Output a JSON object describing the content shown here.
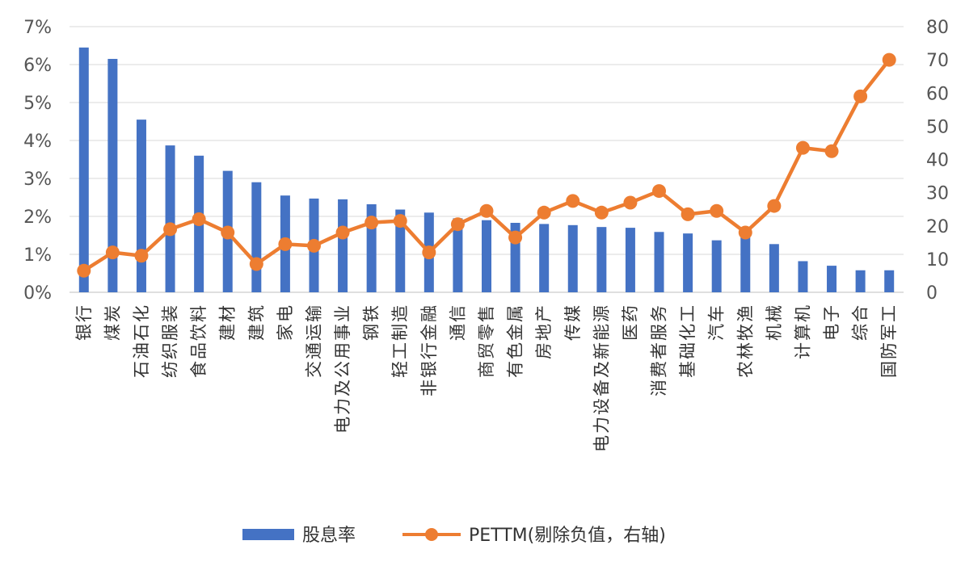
{
  "chart_data": {
    "type": "bar",
    "categories": [
      "银行",
      "煤炭",
      "石油石化",
      "纺织服装",
      "食品饮料",
      "建材",
      "建筑",
      "家电",
      "交通运输",
      "电力及公用事业",
      "钢铁",
      "轻工制造",
      "非银行金融",
      "通信",
      "商贸零售",
      "有色金属",
      "房地产",
      "传媒",
      "电力设备及新能源",
      "医药",
      "消费者服务",
      "基础化工",
      "汽车",
      "农林牧渔",
      "机械",
      "计算机",
      "电子",
      "综合",
      "国防军工"
    ],
    "series": [
      {
        "name": "股息率",
        "type": "bar",
        "axis": "left",
        "color": "#4472C4",
        "values": [
          6.45,
          6.15,
          4.55,
          3.87,
          3.6,
          3.2,
          2.9,
          2.55,
          2.47,
          2.45,
          2.32,
          2.18,
          2.1,
          1.95,
          1.9,
          1.83,
          1.8,
          1.77,
          1.72,
          1.7,
          1.59,
          1.55,
          1.37,
          1.48,
          1.27,
          0.82,
          0.7,
          0.58,
          0.58
        ]
      },
      {
        "name": "PETTM(剔除负值，右轴)",
        "type": "line",
        "axis": "right",
        "color": "#ED7D31",
        "values": [
          6.5,
          12.0,
          11.0,
          19.0,
          22.0,
          18.0,
          8.5,
          14.5,
          14.0,
          18.0,
          21.0,
          21.5,
          12.0,
          20.5,
          24.5,
          16.5,
          24.0,
          27.5,
          24.0,
          27.0,
          30.5,
          23.5,
          24.5,
          18.0,
          26.0,
          43.5,
          42.5,
          59.0,
          70.0
        ]
      }
    ],
    "y_left": {
      "min": 0,
      "max": 7,
      "ticks": [
        "0%",
        "1%",
        "2%",
        "3%",
        "4%",
        "5%",
        "6%",
        "7%"
      ]
    },
    "y_right": {
      "min": 0,
      "max": 80,
      "ticks": [
        "0",
        "10",
        "20",
        "30",
        "40",
        "50",
        "60",
        "70",
        "80"
      ]
    },
    "grid": true,
    "legend": {
      "placement": "bottom",
      "items": [
        "股息率",
        "PETTM(剔除负值，右轴)"
      ]
    }
  }
}
